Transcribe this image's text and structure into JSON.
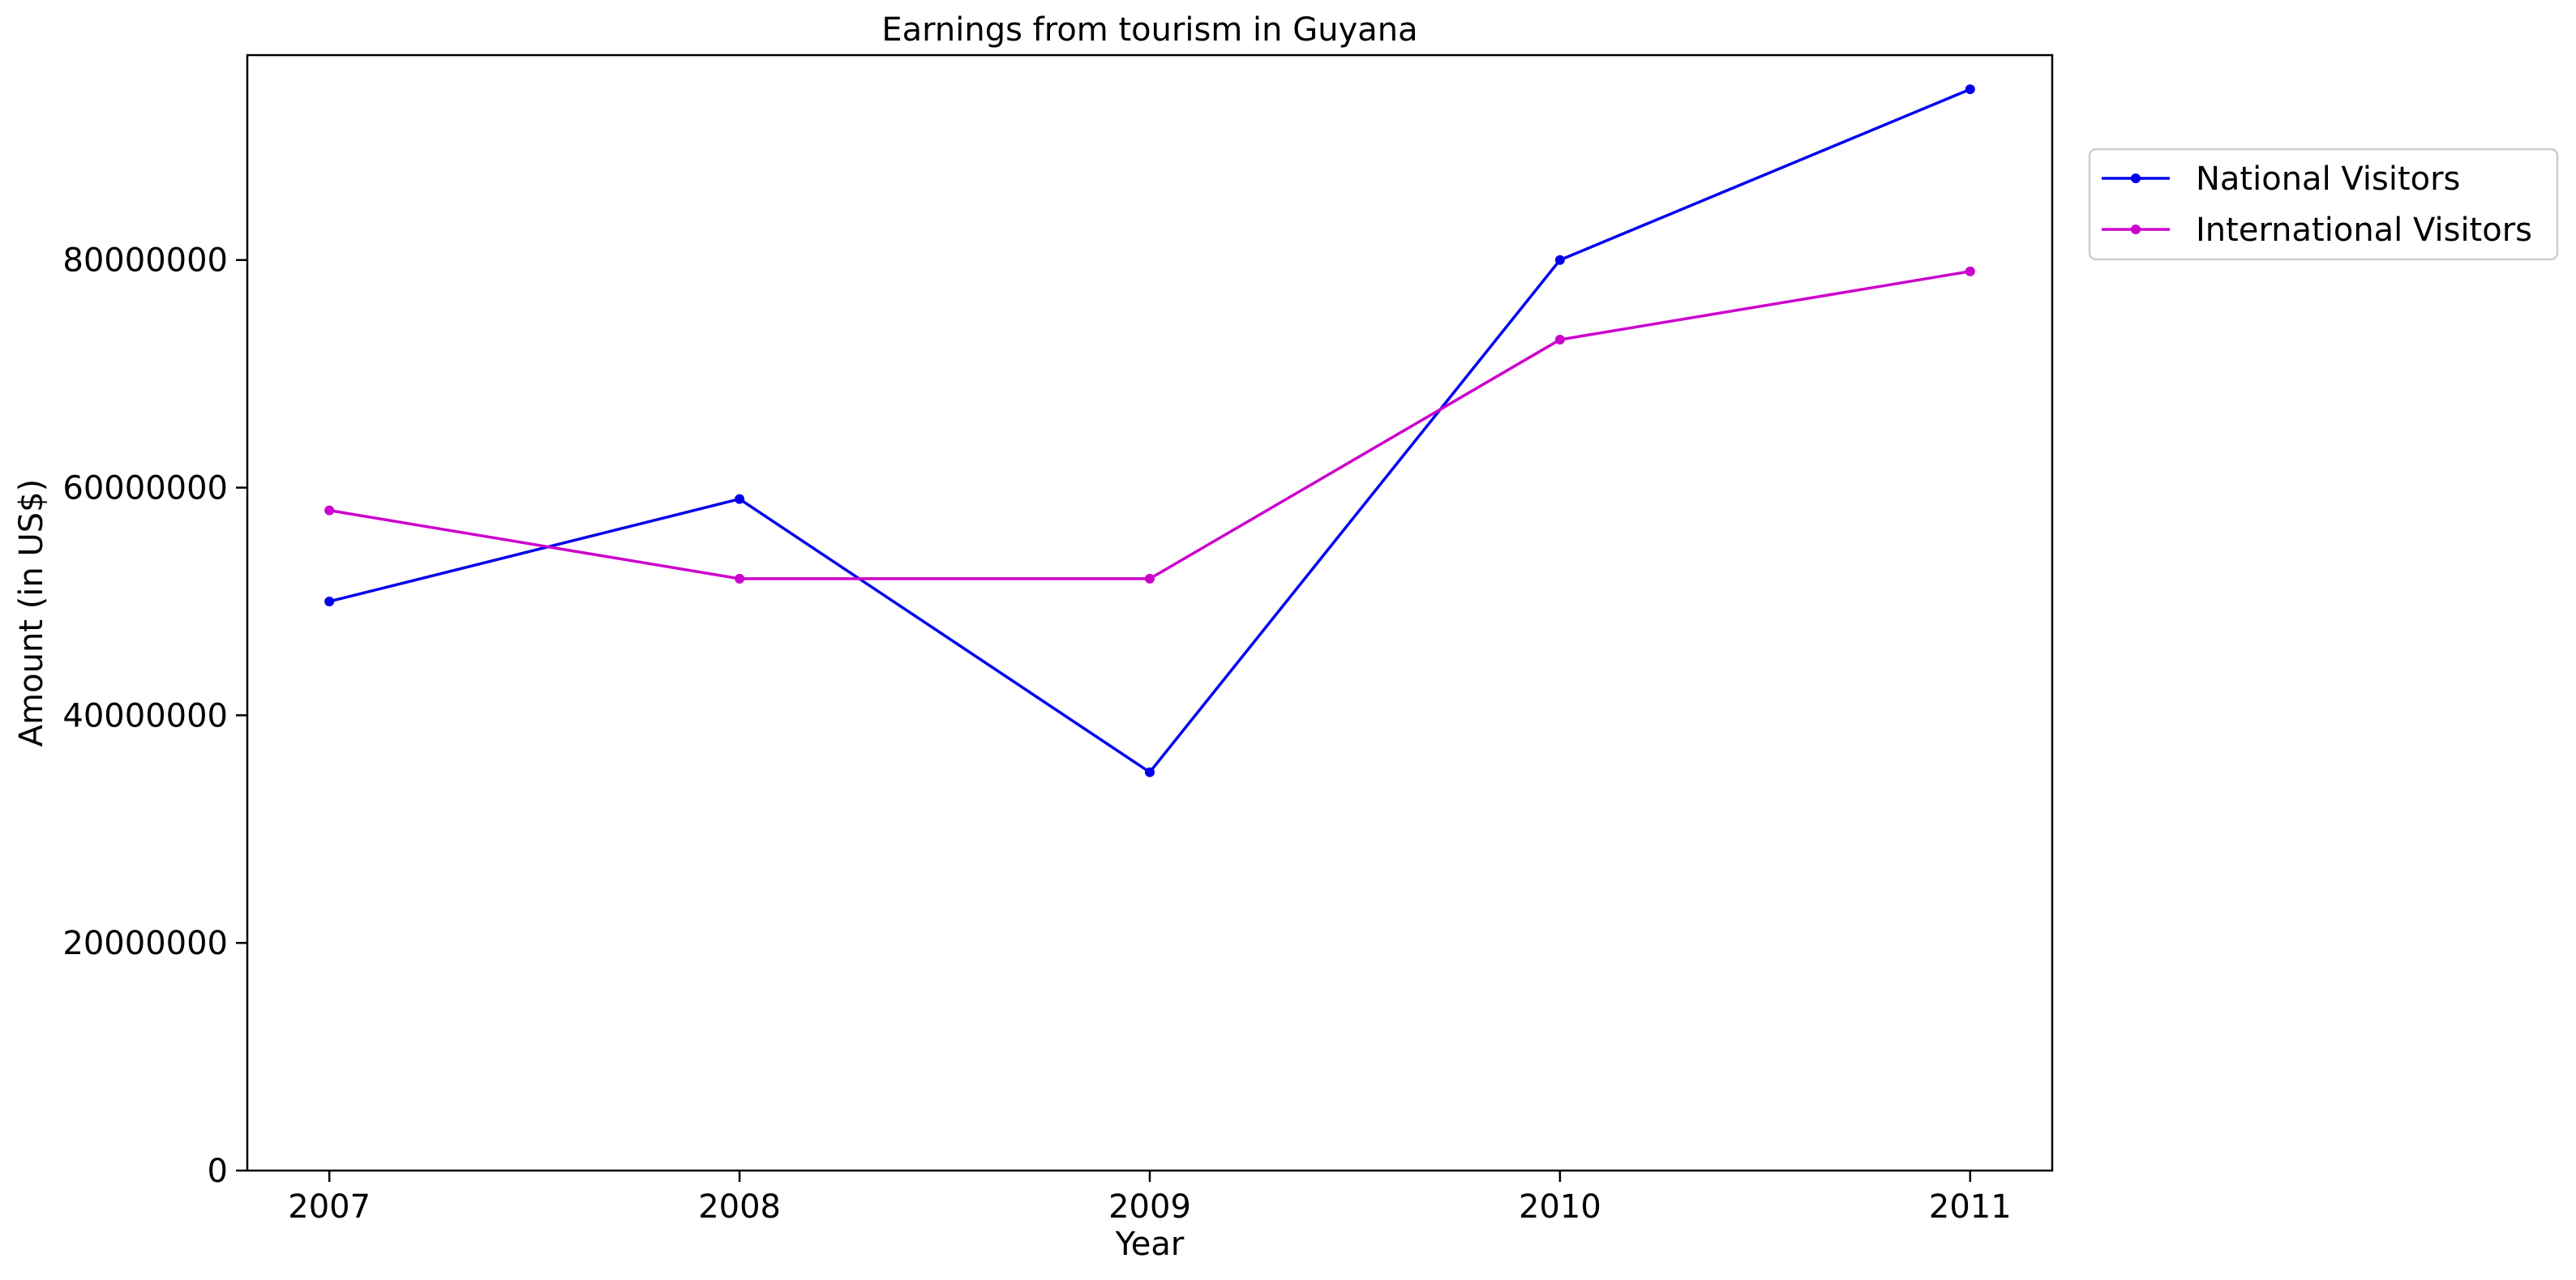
{
  "chart_data": {
    "type": "line",
    "title": "Earnings from tourism in Guyana",
    "xlabel": "Year",
    "ylabel": "Amount (in US$)",
    "x": [
      "2007",
      "2008",
      "2009",
      "2010",
      "2011"
    ],
    "xlim": [
      2006.8,
      2011.2
    ],
    "ylim": [
      0,
      98000000
    ],
    "yticks": [
      0,
      20000000,
      40000000,
      60000000,
      80000000
    ],
    "ytick_labels": [
      "0",
      "20000000",
      "40000000",
      "60000000",
      "80000000"
    ],
    "grid": false,
    "legend": "upper-right-outside",
    "series": [
      {
        "name": "National Visitors",
        "color": "#0000ee",
        "marker": "dot",
        "values": [
          50000000,
          59000000,
          35000000,
          80000000,
          95000000
        ]
      },
      {
        "name": "International Visitors",
        "color": "#cc00cc",
        "marker": "dot",
        "values": [
          58000000,
          52000000,
          52000000,
          73000000,
          79000000
        ]
      }
    ]
  }
}
